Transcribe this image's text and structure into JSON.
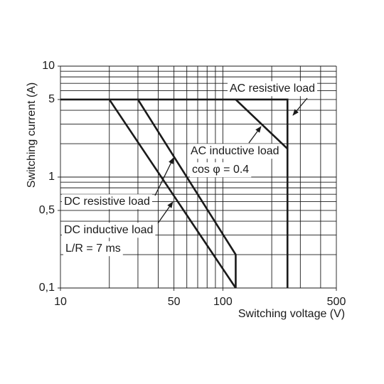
{
  "chart_data": {
    "type": "line",
    "xlabel": "Switching voltage (V)",
    "ylabel": "Switching current (A)",
    "log_x": true,
    "log_y": true,
    "xlim": [
      10,
      500
    ],
    "ylim": [
      0.1,
      10
    ],
    "xticks": [
      10,
      50,
      100,
      500
    ],
    "yticks": [
      {
        "value": 0.1,
        "label": "0,1"
      },
      {
        "value": 0.5,
        "label": "0,5"
      },
      1,
      5,
      10
    ],
    "x_gridlines": [
      10,
      20,
      30,
      40,
      50,
      60,
      70,
      80,
      90,
      100,
      200,
      300,
      400,
      500
    ],
    "y_gridlines": [
      0.1,
      0.2,
      0.3,
      0.4,
      0.5,
      0.6,
      0.7,
      0.8,
      0.9,
      1,
      2,
      3,
      4,
      5,
      6,
      7,
      8,
      9,
      10
    ],
    "series": [
      {
        "name": "AC resistive load",
        "color": "#1a1a1a",
        "x": [
          10,
          250,
          250
        ],
        "values": [
          5,
          5,
          0.1
        ]
      },
      {
        "name": "AC inductive load",
        "color": "#1a1a1a",
        "x": [
          120,
          250
        ],
        "values": [
          5,
          1.8
        ]
      },
      {
        "name": "DC resistive load",
        "color": "#1a1a1a",
        "x": [
          30,
          120,
          120
        ],
        "values": [
          5,
          0.2,
          0.1
        ]
      },
      {
        "name": "DC inductive load",
        "color": "#1a1a1a",
        "x": [
          20,
          120
        ],
        "values": [
          5,
          0.1
        ]
      }
    ],
    "annotations": [
      {
        "series": 0,
        "lines": [
          "AC resistive load"
        ]
      },
      {
        "series": 1,
        "lines": [
          "AC inductive load",
          "cos φ = 0.4"
        ]
      },
      {
        "series": 2,
        "lines": [
          "DC resistive load"
        ]
      },
      {
        "series": 3,
        "lines": [
          "DC inductive load",
          "L/R = 7 ms"
        ]
      }
    ]
  }
}
